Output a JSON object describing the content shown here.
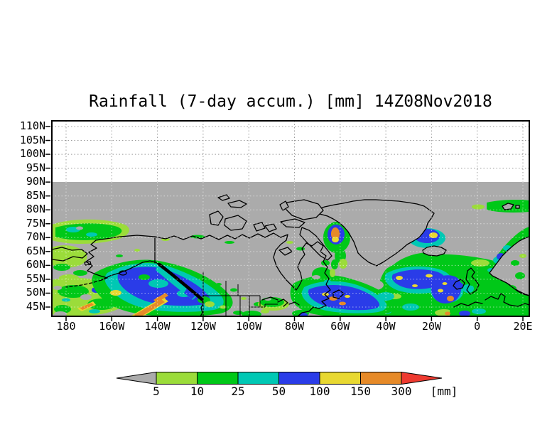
{
  "title": "Rainfall (7-day accum.) [mm] 14Z08Nov2018",
  "axes": {
    "y_ticks": [
      "110N",
      "105N",
      "100N",
      "95N",
      "90N",
      "85N",
      "80N",
      "75N",
      "70N",
      "65N",
      "60N",
      "55N",
      "50N",
      "45N"
    ],
    "x_ticks": [
      "180",
      "160W",
      "140W",
      "120W",
      "100W",
      "80W",
      "60W",
      "40W",
      "20W",
      "0",
      "20E"
    ]
  },
  "colorbar": {
    "unit": "[mm]",
    "boundaries": [
      "5",
      "10",
      "25",
      "50",
      "100",
      "150",
      "300"
    ],
    "below_min_color": "#ababab",
    "above_max_color": "#ee3a30",
    "segment_colors": [
      "#9bdc3a",
      "#00c818",
      "#00c8b4",
      "#2a3ce8",
      "#e8d831",
      "#e68a28"
    ]
  },
  "map": {
    "background_color": "#ababab",
    "polar_cap_color": "#ffffff",
    "coastline_color": "#000000",
    "gridline_color_polar": "#999999"
  },
  "chart_data": {
    "type": "heatmap",
    "title": "Rainfall (7-day accum.) [mm] 14Z08Nov2018",
    "units": "mm",
    "levels": [
      5,
      10,
      25,
      50,
      100,
      150,
      300
    ],
    "level_colors": [
      "#ababab",
      "#9bdc3a",
      "#00c818",
      "#00c8b4",
      "#2a3ce8",
      "#e8d831",
      "#e68a28",
      "#ee3a30"
    ],
    "lat_range": [
      "45N",
      "110N"
    ],
    "lon_range": [
      "180",
      "20E"
    ],
    "grid": "dashed"
  }
}
